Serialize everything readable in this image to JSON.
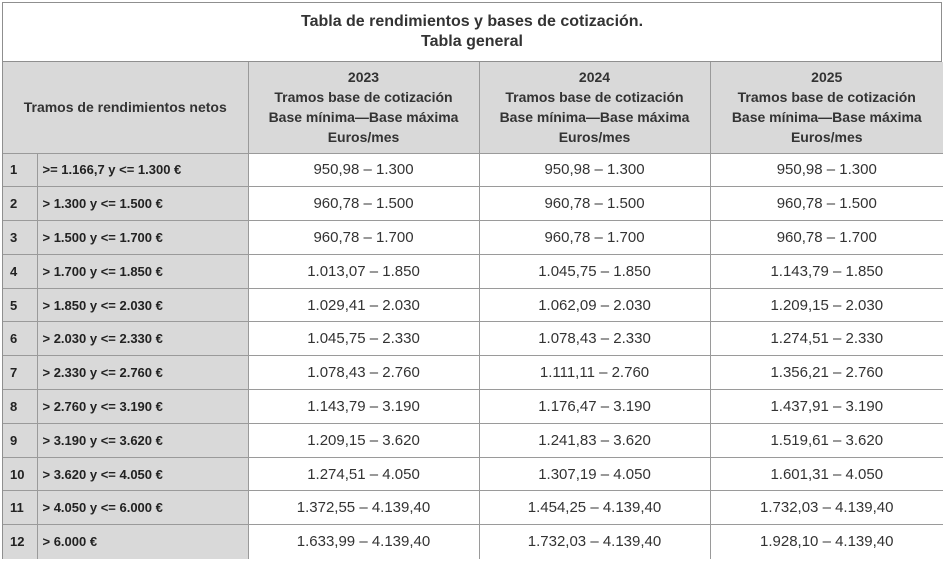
{
  "title": {
    "line1": "Tabla de rendimientos y bases de cotización.",
    "line2": "Tabla general"
  },
  "header": {
    "tramos": "Tramos de rendimientos netos",
    "years": [
      {
        "year": "2023",
        "l1": "Tramos base de cotización",
        "l2": "Base mínima—Base máxima",
        "l3": "Euros/mes"
      },
      {
        "year": "2024",
        "l1": "Tramos base de cotización",
        "l2": "Base mínima—Base máxima",
        "l3": "Euros/mes"
      },
      {
        "year": "2025",
        "l1": "Tramos base de cotización",
        "l2": "Base mínima—Base máxima",
        "l3": "Euros/mes"
      }
    ]
  },
  "rows": [
    {
      "n": "1",
      "range": ">= 1.166,7 y <= 1.300 €",
      "v": [
        "950,98 – 1.300",
        "950,98 – 1.300",
        "950,98 – 1.300"
      ]
    },
    {
      "n": "2",
      "range": "> 1.300 y <= 1.500 €",
      "v": [
        "960,78 – 1.500",
        "960,78 – 1.500",
        "960,78 – 1.500"
      ]
    },
    {
      "n": "3",
      "range": "> 1.500 y <= 1.700 €",
      "v": [
        "960,78 – 1.700",
        "960,78 – 1.700",
        "960,78 – 1.700"
      ]
    },
    {
      "n": "4",
      "range": "> 1.700 y <= 1.850 €",
      "v": [
        "1.013,07 – 1.850",
        "1.045,75 – 1.850",
        "1.143,79 – 1.850"
      ]
    },
    {
      "n": "5",
      "range": "> 1.850 y <= 2.030 €",
      "v": [
        "1.029,41 – 2.030",
        "1.062,09 – 2.030",
        "1.209,15 – 2.030"
      ]
    },
    {
      "n": "6",
      "range": "> 2.030 y <= 2.330 €",
      "v": [
        "1.045,75 – 2.330",
        "1.078,43 – 2.330",
        "1.274,51 – 2.330"
      ]
    },
    {
      "n": "7",
      "range": "> 2.330 y <= 2.760 €",
      "v": [
        "1.078,43 – 2.760",
        "1.111,11 – 2.760",
        "1.356,21 – 2.760"
      ]
    },
    {
      "n": "8",
      "range": "> 2.760 y <= 3.190 €",
      "v": [
        "1.143,79 – 3.190",
        "1.176,47 – 3.190",
        "1.437,91 – 3.190"
      ]
    },
    {
      "n": "9",
      "range": "> 3.190 y <= 3.620 €",
      "v": [
        "1.209,15 – 3.620",
        "1.241,83 – 3.620",
        "1.519,61 – 3.620"
      ]
    },
    {
      "n": "10",
      "range": "> 3.620 y <= 4.050 €",
      "v": [
        "1.274,51 – 4.050",
        "1.307,19 – 4.050",
        "1.601,31 – 4.050"
      ]
    },
    {
      "n": "11",
      "range": "> 4.050 y <= 6.000 €",
      "v": [
        "1.372,55 – 4.139,40",
        "1.454,25 – 4.139,40",
        "1.732,03 – 4.139,40"
      ]
    },
    {
      "n": "12",
      "range": "> 6.000 €",
      "v": [
        "1.633,99 – 4.139,40",
        "1.732,03 – 4.139,40",
        "1.928,10 – 4.139,40"
      ]
    }
  ]
}
